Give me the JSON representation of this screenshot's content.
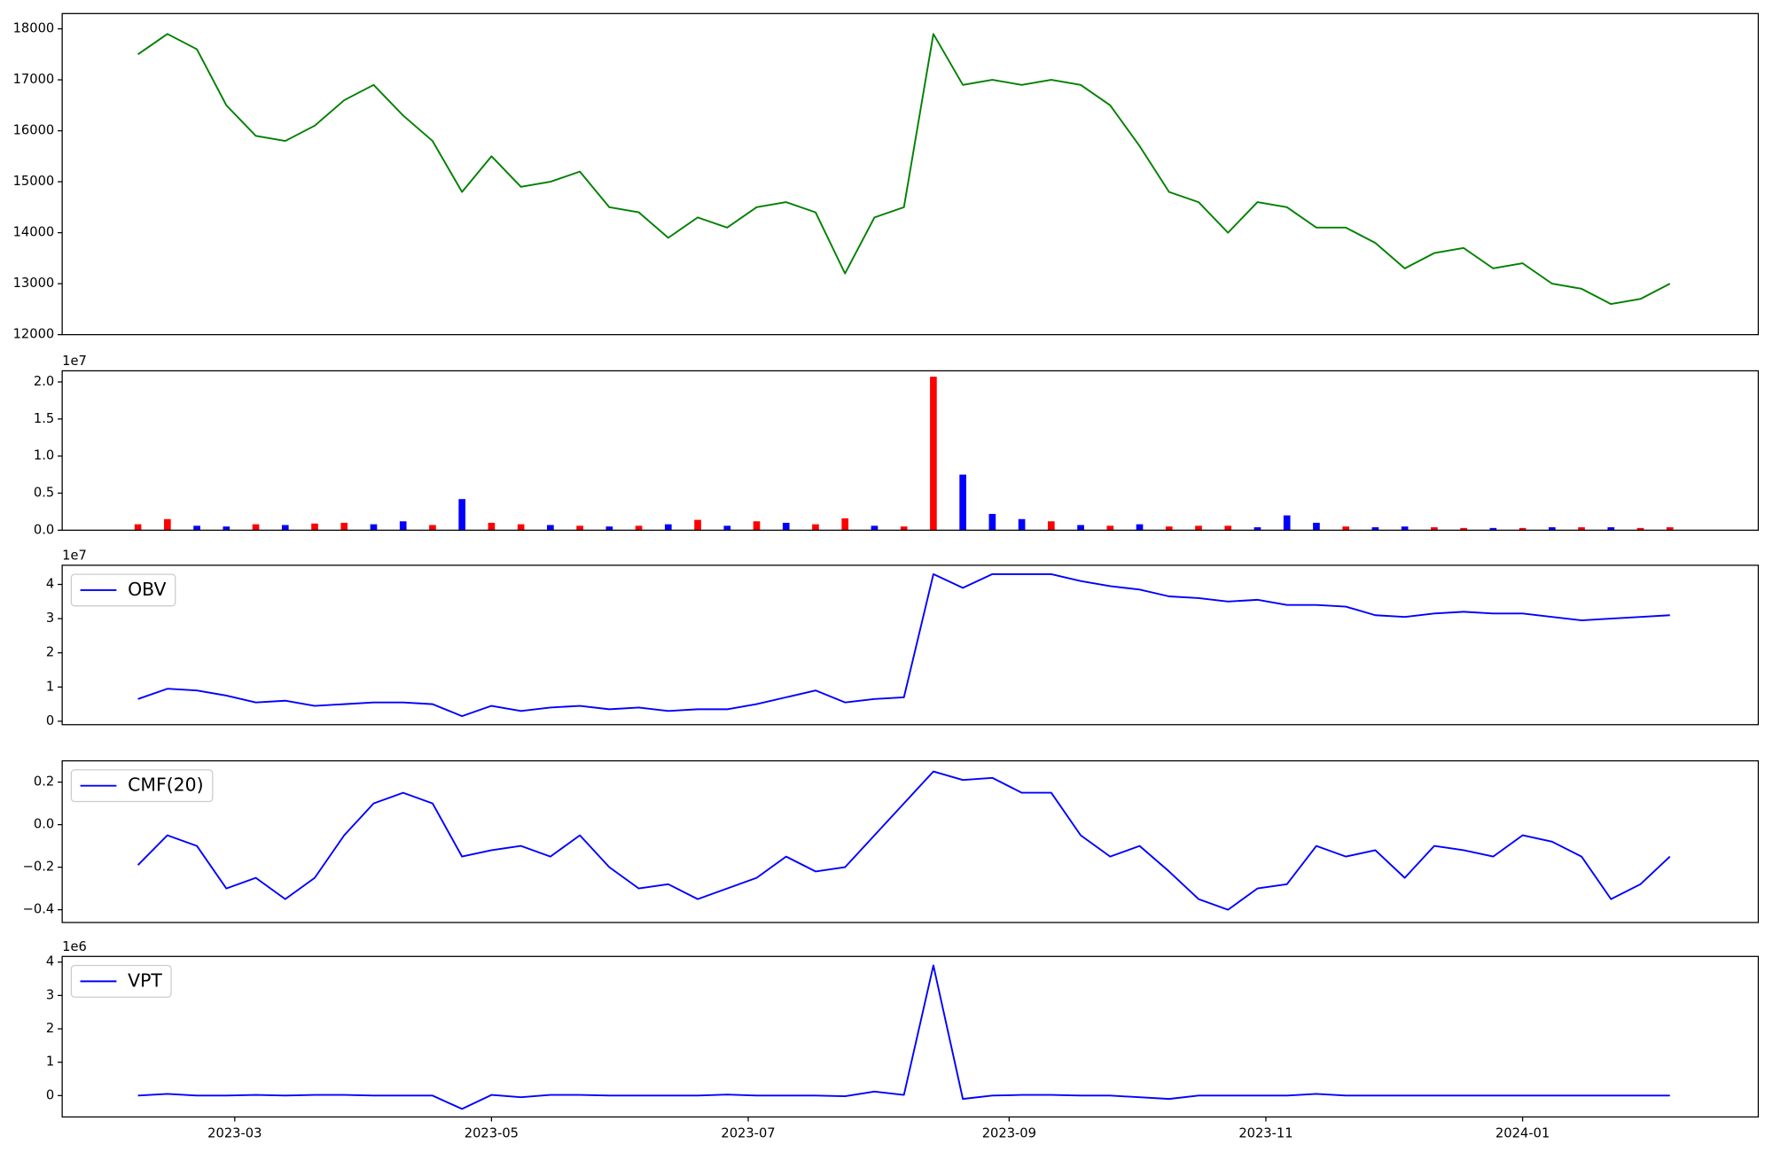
{
  "chart_data": [
    {
      "type": "line",
      "xlim": [
        "2023-01-19",
        "2024-02-26"
      ],
      "ylim": [
        12000,
        18300
      ],
      "yticks": [
        12000,
        13000,
        14000,
        15000,
        16000,
        17000,
        18000
      ],
      "x": [
        "2023-02-06",
        "2023-02-13",
        "2023-02-20",
        "2023-02-27",
        "2023-03-06",
        "2023-03-13",
        "2023-03-20",
        "2023-03-27",
        "2023-04-03",
        "2023-04-10",
        "2023-04-17",
        "2023-04-24",
        "2023-05-01",
        "2023-05-08",
        "2023-05-15",
        "2023-05-22",
        "2023-05-29",
        "2023-06-05",
        "2023-06-12",
        "2023-06-19",
        "2023-06-26",
        "2023-07-03",
        "2023-07-10",
        "2023-07-17",
        "2023-07-24",
        "2023-07-31",
        "2023-08-07",
        "2023-08-14",
        "2023-08-21",
        "2023-08-28",
        "2023-09-04",
        "2023-09-11",
        "2023-09-18",
        "2023-09-25",
        "2023-10-02",
        "2023-10-09",
        "2023-10-16",
        "2023-10-23",
        "2023-10-30",
        "2023-11-06",
        "2023-11-13",
        "2023-11-20",
        "2023-11-27",
        "2023-12-04",
        "2023-12-11",
        "2023-12-18",
        "2023-12-25",
        "2024-01-01",
        "2024-01-08",
        "2024-01-15",
        "2024-01-22",
        "2024-01-29",
        "2024-02-05"
      ],
      "series": [
        {
          "color": "#008000",
          "values": [
            17500,
            17900,
            17600,
            16500,
            15900,
            15800,
            16100,
            16600,
            16900,
            16300,
            15800,
            14800,
            15500,
            14900,
            15000,
            15200,
            14500,
            14400,
            13900,
            14300,
            14100,
            14500,
            14600,
            14400,
            13200,
            14300,
            14500,
            17900,
            16900,
            17000,
            16900,
            17000,
            16900,
            16500,
            15700,
            14800,
            14600,
            14000,
            14600,
            14500,
            14100,
            14100,
            13800,
            13300,
            13600,
            13700,
            13300,
            13400,
            13000,
            12900,
            12600,
            12700,
            13000
          ]
        }
      ]
    },
    {
      "type": "bar",
      "xlim": [
        "2023-01-19",
        "2024-02-26"
      ],
      "ylim": [
        0,
        2.15
      ],
      "yticks": [
        {
          "value": 0,
          "label": "0.0"
        },
        0.5,
        {
          "value": 1,
          "label": "1.0"
        },
        1.5,
        {
          "value": 2,
          "label": "2.0"
        }
      ],
      "y_offset_label": "1e7",
      "x": [
        "2023-02-06",
        "2023-02-13",
        "2023-02-20",
        "2023-02-27",
        "2023-03-06",
        "2023-03-13",
        "2023-03-20",
        "2023-03-27",
        "2023-04-03",
        "2023-04-10",
        "2023-04-17",
        "2023-04-24",
        "2023-05-01",
        "2023-05-08",
        "2023-05-15",
        "2023-05-22",
        "2023-05-29",
        "2023-06-05",
        "2023-06-12",
        "2023-06-19",
        "2023-06-26",
        "2023-07-03",
        "2023-07-10",
        "2023-07-17",
        "2023-07-24",
        "2023-07-31",
        "2023-08-07",
        "2023-08-14",
        "2023-08-21",
        "2023-08-28",
        "2023-09-04",
        "2023-09-11",
        "2023-09-18",
        "2023-09-25",
        "2023-10-02",
        "2023-10-09",
        "2023-10-16",
        "2023-10-23",
        "2023-10-30",
        "2023-11-06",
        "2023-11-13",
        "2023-11-20",
        "2023-11-27",
        "2023-12-04",
        "2023-12-11",
        "2023-12-18",
        "2023-12-25",
        "2024-01-01",
        "2024-01-08",
        "2024-01-15",
        "2024-01-22",
        "2024-01-29",
        "2024-02-05"
      ],
      "values": [
        0.08,
        0.15,
        0.06,
        0.05,
        0.08,
        0.07,
        0.09,
        0.1,
        0.08,
        0.12,
        0.07,
        0.42,
        0.1,
        0.08,
        0.07,
        0.06,
        0.05,
        0.06,
        0.08,
        0.14,
        0.06,
        0.12,
        0.1,
        0.08,
        0.16,
        0.06,
        0.05,
        2.07,
        0.75,
        0.22,
        0.15,
        0.12,
        0.07,
        0.06,
        0.08,
        0.05,
        0.06,
        0.06,
        0.04,
        0.2,
        0.1,
        0.05,
        0.04,
        0.05,
        0.04,
        0.03,
        0.03,
        0.03,
        0.04,
        0.04,
        0.04,
        0.03,
        0.04
      ],
      "colors": [
        "#ff0000",
        "#ff0000",
        "#0000ff",
        "#0000ff",
        "#ff0000",
        "#0000ff",
        "#ff0000",
        "#ff0000",
        "#0000ff",
        "#0000ff",
        "#ff0000",
        "#0000ff",
        "#ff0000",
        "#ff0000",
        "#0000ff",
        "#ff0000",
        "#0000ff",
        "#ff0000",
        "#0000ff",
        "#ff0000",
        "#0000ff",
        "#ff0000",
        "#0000ff",
        "#ff0000",
        "#ff0000",
        "#0000ff",
        "#ff0000",
        "#ff0000",
        "#0000ff",
        "#0000ff",
        "#0000ff",
        "#ff0000",
        "#0000ff",
        "#ff0000",
        "#0000ff",
        "#ff0000",
        "#ff0000",
        "#ff0000",
        "#0000ff",
        "#0000ff",
        "#0000ff",
        "#ff0000",
        "#0000ff",
        "#0000ff",
        "#ff0000",
        "#ff0000",
        "#0000ff",
        "#ff0000",
        "#0000ff",
        "#ff0000",
        "#0000ff",
        "#ff0000",
        "#ff0000"
      ]
    },
    {
      "type": "line",
      "xlim": [
        "2023-01-19",
        "2024-02-26"
      ],
      "ylim": [
        -0.1,
        4.56
      ],
      "yticks": [
        0,
        1,
        2,
        3,
        4
      ],
      "y_offset_label": "1e7",
      "legend": "upper left",
      "x": [
        "2023-02-06",
        "2023-02-13",
        "2023-02-20",
        "2023-02-27",
        "2023-03-06",
        "2023-03-13",
        "2023-03-20",
        "2023-03-27",
        "2023-04-03",
        "2023-04-10",
        "2023-04-17",
        "2023-04-24",
        "2023-05-01",
        "2023-05-08",
        "2023-05-15",
        "2023-05-22",
        "2023-05-29",
        "2023-06-05",
        "2023-06-12",
        "2023-06-19",
        "2023-06-26",
        "2023-07-03",
        "2023-07-10",
        "2023-07-17",
        "2023-07-24",
        "2023-07-31",
        "2023-08-07",
        "2023-08-14",
        "2023-08-21",
        "2023-08-28",
        "2023-09-04",
        "2023-09-11",
        "2023-09-18",
        "2023-09-25",
        "2023-10-02",
        "2023-10-09",
        "2023-10-16",
        "2023-10-23",
        "2023-10-30",
        "2023-11-06",
        "2023-11-13",
        "2023-11-20",
        "2023-11-27",
        "2023-12-04",
        "2023-12-11",
        "2023-12-18",
        "2023-12-25",
        "2024-01-01",
        "2024-01-08",
        "2024-01-15",
        "2024-01-22",
        "2024-01-29",
        "2024-02-05"
      ],
      "series": [
        {
          "name": "OBV",
          "color": "#0000ff",
          "values": [
            0.65,
            0.95,
            0.9,
            0.75,
            0.55,
            0.6,
            0.45,
            0.5,
            0.55,
            0.55,
            0.5,
            0.15,
            0.45,
            0.3,
            0.4,
            0.45,
            0.35,
            0.4,
            0.3,
            0.35,
            0.35,
            0.5,
            0.7,
            0.9,
            0.55,
            0.65,
            0.7,
            4.3,
            3.9,
            4.3,
            4.3,
            4.3,
            4.1,
            3.95,
            3.85,
            3.65,
            3.6,
            3.5,
            3.55,
            3.4,
            3.4,
            3.35,
            3.1,
            3.05,
            3.15,
            3.2,
            3.15,
            3.15,
            3.05,
            2.95,
            3.0,
            3.05,
            3.1
          ]
        }
      ]
    },
    {
      "type": "line",
      "xlim": [
        "2023-01-19",
        "2024-02-26"
      ],
      "ylim": [
        -0.46,
        0.3
      ],
      "yticks": [
        {
          "value": -0.4,
          "label": "−0.4"
        },
        {
          "value": -0.2,
          "label": "−0.2"
        },
        {
          "value": 0,
          "label": "0.0"
        },
        0.2
      ],
      "legend": "upper left",
      "x": [
        "2023-02-06",
        "2023-02-13",
        "2023-02-20",
        "2023-02-27",
        "2023-03-06",
        "2023-03-13",
        "2023-03-20",
        "2023-03-27",
        "2023-04-03",
        "2023-04-10",
        "2023-04-17",
        "2023-04-24",
        "2023-05-01",
        "2023-05-08",
        "2023-05-15",
        "2023-05-22",
        "2023-05-29",
        "2023-06-05",
        "2023-06-12",
        "2023-06-19",
        "2023-06-26",
        "2023-07-03",
        "2023-07-10",
        "2023-07-17",
        "2023-07-24",
        "2023-07-31",
        "2023-08-07",
        "2023-08-14",
        "2023-08-21",
        "2023-08-28",
        "2023-09-04",
        "2023-09-11",
        "2023-09-18",
        "2023-09-25",
        "2023-10-02",
        "2023-10-09",
        "2023-10-16",
        "2023-10-23",
        "2023-10-30",
        "2023-11-06",
        "2023-11-13",
        "2023-11-20",
        "2023-11-27",
        "2023-12-04",
        "2023-12-11",
        "2023-12-18",
        "2023-12-25",
        "2024-01-01",
        "2024-01-08",
        "2024-01-15",
        "2024-01-22",
        "2024-01-29",
        "2024-02-05"
      ],
      "series": [
        {
          "name": "CMF(20)",
          "color": "#0000ff",
          "values": [
            -0.19,
            -0.05,
            -0.1,
            -0.3,
            -0.25,
            -0.35,
            -0.25,
            -0.05,
            0.1,
            0.15,
            0.1,
            -0.15,
            -0.12,
            -0.1,
            -0.15,
            -0.05,
            -0.2,
            -0.3,
            -0.28,
            -0.35,
            -0.3,
            -0.25,
            -0.15,
            -0.22,
            -0.2,
            -0.05,
            0.1,
            0.25,
            0.21,
            0.22,
            0.15,
            0.15,
            -0.05,
            -0.15,
            -0.1,
            -0.22,
            -0.35,
            -0.4,
            -0.3,
            -0.28,
            -0.1,
            -0.15,
            -0.12,
            -0.25,
            -0.1,
            -0.12,
            -0.15,
            -0.05,
            -0.08,
            -0.15,
            -0.35,
            -0.28,
            -0.15
          ]
        }
      ]
    },
    {
      "type": "line",
      "xlim": [
        "2023-01-19",
        "2024-02-26"
      ],
      "ylim": [
        -0.64,
        4.17
      ],
      "yticks": [
        0,
        1,
        2,
        3,
        4
      ],
      "y_offset_label": "1e6",
      "legend": "upper left",
      "x": [
        "2023-02-06",
        "2023-02-13",
        "2023-02-20",
        "2023-02-27",
        "2023-03-06",
        "2023-03-13",
        "2023-03-20",
        "2023-03-27",
        "2023-04-03",
        "2023-04-10",
        "2023-04-17",
        "2023-04-24",
        "2023-05-01",
        "2023-05-08",
        "2023-05-15",
        "2023-05-22",
        "2023-05-29",
        "2023-06-05",
        "2023-06-12",
        "2023-06-19",
        "2023-06-26",
        "2023-07-03",
        "2023-07-10",
        "2023-07-17",
        "2023-07-24",
        "2023-07-31",
        "2023-08-07",
        "2023-08-14",
        "2023-08-21",
        "2023-08-28",
        "2023-09-04",
        "2023-09-11",
        "2023-09-18",
        "2023-09-25",
        "2023-10-02",
        "2023-10-09",
        "2023-10-16",
        "2023-10-23",
        "2023-10-30",
        "2023-11-06",
        "2023-11-13",
        "2023-11-20",
        "2023-11-27",
        "2023-12-04",
        "2023-12-11",
        "2023-12-18",
        "2023-12-25",
        "2024-01-01",
        "2024-01-08",
        "2024-01-15",
        "2024-01-22",
        "2024-01-29",
        "2024-02-05"
      ],
      "xticks": [
        {
          "value": "2023-03-01",
          "label": "2023-03"
        },
        {
          "value": "2023-05-01",
          "label": "2023-05"
        },
        {
          "value": "2023-07-01",
          "label": "2023-07"
        },
        {
          "value": "2023-09-01",
          "label": "2023-09"
        },
        {
          "value": "2023-11-01",
          "label": "2023-11"
        },
        {
          "value": "2024-01-01",
          "label": "2024-01"
        }
      ],
      "series": [
        {
          "name": "VPT",
          "color": "#0000ff",
          "values": [
            0.0,
            0.05,
            0.0,
            0.0,
            0.02,
            0.0,
            0.02,
            0.02,
            0.0,
            0.0,
            0.0,
            -0.4,
            0.02,
            -0.05,
            0.02,
            0.02,
            0.0,
            0.0,
            0.0,
            0.0,
            0.03,
            0.0,
            0.0,
            0.0,
            -0.02,
            0.12,
            0.02,
            3.9,
            -0.1,
            0.0,
            0.02,
            0.02,
            0.0,
            0.0,
            -0.05,
            -0.1,
            0.0,
            0.0,
            0.0,
            0.0,
            0.05,
            0.0,
            0.0,
            0.0,
            0.0,
            0.0,
            0.0,
            0.0,
            0.0,
            0.0,
            0.0,
            0.0,
            0.0
          ]
        }
      ]
    }
  ]
}
